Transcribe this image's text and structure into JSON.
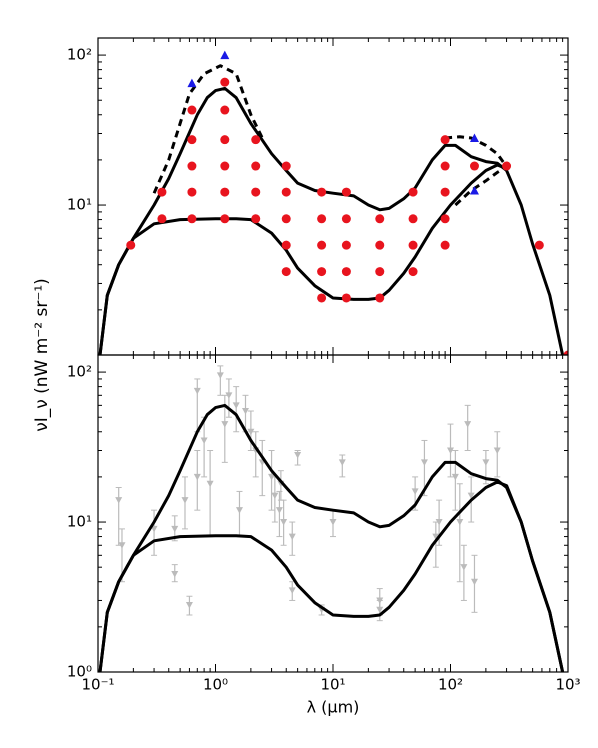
{
  "chart_data": [
    {
      "type": "line",
      "xlog": true,
      "ylog": true,
      "show_xtick_labels": false,
      "ylabel": "νI_ν (nW m⁻² sr⁻¹)",
      "xlim": [
        0.1,
        1000
      ],
      "ylim": [
        1,
        130
      ],
      "xticks": [
        0.1,
        1,
        10,
        100,
        1000
      ],
      "yticks": [
        {
          "value": 10,
          "label": "10¹"
        },
        {
          "value": 100,
          "label": "10²"
        }
      ],
      "series": [
        {
          "color": "#000000",
          "style": "solid",
          "x": [
            0.104,
            0.12,
            0.15,
            0.2,
            0.3,
            0.4,
            0.5,
            0.7,
            0.85,
            1.0,
            1.2,
            1.5,
            2,
            3,
            4,
            5,
            7,
            10,
            15,
            20,
            25,
            30,
            40,
            50,
            70,
            90,
            110,
            150,
            200,
            250,
            300,
            400,
            500,
            700,
            900
          ],
          "values": [
            1,
            2.5,
            4,
            6,
            10,
            15,
            22,
            40,
            52,
            58,
            60,
            52,
            35,
            22,
            17,
            14,
            12.5,
            12,
            11.5,
            10,
            9.3,
            9.5,
            11,
            13,
            20,
            25,
            25,
            21,
            19.5,
            19,
            17,
            10,
            5.5,
            2.5,
            1
          ]
        },
        {
          "color": "#000000",
          "style": "solid",
          "x": [
            0.104,
            0.12,
            0.15,
            0.2,
            0.3,
            0.5,
            1,
            1.5,
            2,
            3,
            4,
            5,
            7,
            10,
            15,
            20,
            25,
            30,
            40,
            50,
            70,
            100,
            150,
            200,
            250,
            300
          ],
          "values": [
            1,
            2.5,
            4,
            6,
            7.5,
            8,
            8.1,
            8.1,
            8,
            6.5,
            5,
            3.8,
            2.9,
            2.4,
            2.35,
            2.35,
            2.4,
            2.7,
            3.5,
            4.5,
            7,
            10,
            14,
            17,
            18.5,
            17.5
          ]
        },
        {
          "color": "#000000",
          "style": "dashed",
          "x": [
            0.3,
            0.4,
            0.5,
            0.6,
            0.8,
            1.1,
            1.5,
            2,
            2.5
          ],
          "values": [
            12,
            20,
            35,
            55,
            75,
            85,
            75,
            40,
            28
          ]
        },
        {
          "color": "#000000",
          "style": "dashed",
          "x": [
            90,
            120,
            150,
            200,
            250,
            300
          ],
          "values": [
            28,
            28.5,
            28,
            25,
            22,
            18
          ]
        },
        {
          "color": "#000000",
          "style": "dashed",
          "x": [
            110,
            150,
            200,
            250,
            300
          ],
          "values": [
            10,
            12.5,
            14.5,
            16.5,
            18
          ]
        },
        {
          "color": "#e8141e",
          "marker": "circle",
          "x": [
            0.19,
            0.35,
            0.35,
            0.63,
            0.63,
            0.63,
            0.63,
            0.63,
            1.2,
            1.2,
            1.2,
            1.2,
            1.2,
            1.2,
            2.2,
            2.2,
            2.2,
            2.2,
            4,
            4,
            4,
            4,
            4,
            8,
            8,
            8,
            8,
            8,
            13,
            13,
            13,
            13,
            13,
            25,
            25,
            25,
            25,
            48,
            48,
            48,
            48,
            90,
            90,
            90,
            90,
            90,
            160,
            300,
            570,
            1000
          ],
          "values": [
            5.4,
            8.1,
            12.2,
            8.1,
            12.2,
            18.2,
            27.3,
            43,
            8.1,
            12.2,
            18.2,
            27.3,
            43,
            66,
            8.1,
            12.2,
            18.2,
            27.3,
            3.6,
            5.4,
            8.1,
            12.2,
            18.2,
            2.4,
            3.6,
            5.4,
            8.1,
            12.2,
            2.4,
            3.6,
            5.4,
            8.1,
            12.2,
            2.4,
            3.6,
            5.4,
            8.1,
            3.6,
            5.4,
            8.1,
            12.2,
            5.4,
            8.1,
            12.2,
            18.2,
            27.3,
            18.2,
            18.2,
            5.4,
            1
          ]
        },
        {
          "color": "#1a1ae6",
          "marker": "triangle",
          "x": [
            0.63,
            1.2,
            160,
            160
          ],
          "values": [
            65,
            100,
            28,
            12.5
          ]
        }
      ]
    },
    {
      "type": "line",
      "xlog": true,
      "ylog": true,
      "show_xtick_labels": true,
      "xlabel": "λ (μm)",
      "xlim": [
        0.1,
        1000
      ],
      "ylim": [
        1,
        130
      ],
      "xticks": [
        {
          "value": 0.1,
          "label": "10⁻¹"
        },
        {
          "value": 1,
          "label": "10⁰"
        },
        {
          "value": 10,
          "label": "10¹"
        },
        {
          "value": 100,
          "label": "10²"
        },
        {
          "value": 1000,
          "label": "10³"
        }
      ],
      "yticks": [
        {
          "value": 1,
          "label": "10⁰"
        },
        {
          "value": 10,
          "label": "10¹"
        },
        {
          "value": 100,
          "label": "10²"
        }
      ],
      "series": [
        {
          "color": "#000000",
          "style": "solid",
          "x": [
            0.104,
            0.12,
            0.15,
            0.2,
            0.3,
            0.4,
            0.5,
            0.7,
            0.85,
            1.0,
            1.2,
            1.5,
            2,
            3,
            4,
            5,
            7,
            10,
            15,
            20,
            25,
            30,
            40,
            50,
            70,
            90,
            110,
            150,
            200,
            250,
            300,
            400,
            500,
            700,
            900
          ],
          "values": [
            1,
            2.5,
            4,
            6,
            10,
            15,
            22,
            40,
            52,
            58,
            60,
            52,
            35,
            22,
            17,
            14,
            12.5,
            12,
            11.5,
            10,
            9.3,
            9.5,
            11,
            13,
            20,
            25,
            25,
            21,
            19.5,
            19,
            17,
            10,
            5.5,
            2.5,
            1
          ]
        },
        {
          "color": "#000000",
          "style": "solid",
          "x": [
            0.104,
            0.12,
            0.15,
            0.2,
            0.3,
            0.5,
            1,
            1.5,
            2,
            3,
            4,
            5,
            7,
            10,
            15,
            20,
            25,
            30,
            40,
            50,
            70,
            100,
            150,
            200,
            250,
            300,
            400,
            500,
            700,
            900
          ],
          "values": [
            1,
            2.5,
            4,
            6,
            7.5,
            8,
            8.1,
            8.1,
            8,
            6.5,
            5,
            3.8,
            2.9,
            2.4,
            2.35,
            2.35,
            2.4,
            2.7,
            3.5,
            4.5,
            7,
            10,
            14,
            17,
            18.5,
            17.5,
            10,
            5.5,
            2.5,
            1
          ]
        }
      ],
      "points": {
        "color": "#bbbbbb",
        "x": [
          0.15,
          0.16,
          0.3,
          0.45,
          0.45,
          0.55,
          0.6,
          0.7,
          0.7,
          0.8,
          0.9,
          1.1,
          1.2,
          1.3,
          1.5,
          1.6,
          1.8,
          2.0,
          2.2,
          2.5,
          3.0,
          3.2,
          3.5,
          3.6,
          3.8,
          4.5,
          4.5,
          5.0,
          8,
          10,
          12,
          25,
          25,
          50,
          60,
          75,
          80,
          100,
          110,
          120,
          130,
          140,
          150,
          160,
          200,
          250
        ],
        "values": [
          14,
          7,
          9,
          4.5,
          9,
          14,
          2.8,
          75,
          20,
          35,
          18,
          95,
          45,
          70,
          60,
          12,
          55,
          40,
          30,
          25,
          20,
          15,
          12,
          18,
          10,
          3.5,
          8,
          28,
          2.6,
          10,
          25,
          2.6,
          3,
          16,
          25,
          8,
          10,
          30,
          20,
          10,
          5,
          45,
          15,
          4,
          25,
          30
        ],
        "ylow": [
          7,
          4,
          6,
          4,
          7.5,
          9,
          2.4,
          40,
          12,
          20,
          8,
          70,
          25,
          50,
          40,
          8,
          40,
          30,
          20,
          15,
          12,
          10,
          8,
          14,
          7,
          3,
          6,
          24,
          2.4,
          8,
          20,
          2.2,
          2.4,
          12,
          15,
          5,
          7,
          20,
          12,
          4,
          3,
          30,
          10,
          2.5,
          18,
          20
        ],
        "yhigh": [
          17,
          9,
          12,
          5.2,
          11,
          20,
          3.2,
          90,
          30,
          50,
          30,
          110,
          70,
          90,
          80,
          16,
          70,
          55,
          40,
          35,
          30,
          20,
          16,
          22,
          14,
          4,
          10,
          30,
          2.8,
          12,
          28,
          3,
          3.6,
          20,
          35,
          10,
          14,
          45,
          30,
          18,
          7,
          60,
          20,
          6,
          30,
          40
        ]
      }
    }
  ]
}
